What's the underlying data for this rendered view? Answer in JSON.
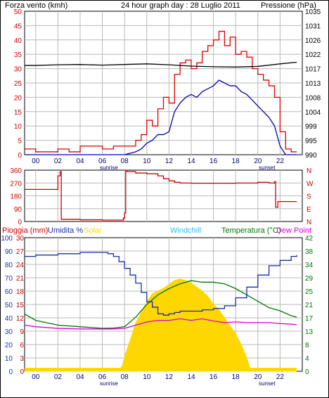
{
  "colors": {
    "wind": "#dd0000",
    "avg_wind": "#0000bb",
    "pressure": "#000000",
    "direction": "#cc0000",
    "humidity": "#1a2ea8",
    "solar": "#ffd700",
    "windchill": "#33bbff",
    "temperature": "#007700",
    "dew_point": "#dd00dd",
    "rain": "#ffd700",
    "grid": "#b8b8b8",
    "axis": "#000000"
  },
  "chart_data": [
    {
      "id": "wind",
      "type": "line",
      "title": "24 hour graph day : 28 Luglio 2011",
      "left_label": "Forza vento (kmh)",
      "right_label": "Pressione (hPa)",
      "x_ticks": [
        "00",
        "02",
        "04",
        "06",
        "08",
        "10",
        "12",
        "14",
        "16",
        "18",
        "20",
        "22"
      ],
      "x_tick_hours": [
        0,
        2,
        4,
        6,
        8,
        10,
        12,
        14,
        16,
        18,
        20,
        22
      ],
      "x_range": [
        -1,
        24
      ],
      "sunrise_label": "sunrise",
      "sunrise_hour": 6.3,
      "sunset_label": "sunset",
      "sunset_hour": 20.7,
      "ylim_left": [
        0,
        50
      ],
      "y_ticks_left": [
        "0",
        "5",
        "10",
        "15",
        "20",
        "25",
        "30",
        "35",
        "40",
        "45",
        "50"
      ],
      "ylim_right": [
        990,
        1035
      ],
      "y_ticks_right": [
        "990",
        "995",
        "999",
        "1004",
        "1008",
        "1013",
        "1017",
        "1022",
        "1026",
        "1031",
        "1035"
      ],
      "series": [
        {
          "key": "gust",
          "axis": "left",
          "x": [
            -1,
            0,
            1,
            2,
            3,
            4,
            5,
            6,
            7,
            8,
            9,
            9.5,
            10,
            10.5,
            11,
            11.5,
            12,
            12.5,
            13,
            13.5,
            14,
            14.5,
            15,
            15.5,
            16,
            16.5,
            17,
            17.5,
            18,
            18.5,
            19,
            19.5,
            20,
            20.5,
            21,
            21.5,
            22,
            22.5,
            23,
            23.5
          ],
          "values": [
            2,
            1,
            1,
            2,
            1,
            3,
            3,
            2,
            3,
            3,
            5,
            7,
            12,
            10,
            16,
            20,
            18,
            28,
            32,
            33,
            30,
            32,
            36,
            38,
            40,
            43,
            38,
            41,
            35,
            36,
            34,
            30,
            28,
            26,
            24,
            20,
            8,
            2,
            1,
            1
          ]
        },
        {
          "key": "avg",
          "axis": "left",
          "x": [
            -1,
            0,
            1,
            2,
            3,
            4,
            5,
            6,
            7,
            8,
            9,
            9.5,
            10,
            10.5,
            11,
            11.5,
            12,
            12.5,
            13,
            13.5,
            14,
            14.5,
            15,
            15.5,
            16,
            16.5,
            17,
            17.5,
            18,
            18.5,
            19,
            19.5,
            20,
            20.5,
            21,
            21.5,
            22,
            22.5,
            23,
            23.5
          ],
          "values": [
            0,
            0,
            0,
            0,
            0,
            0,
            0,
            0,
            0,
            0,
            1,
            2,
            4,
            5,
            7,
            7,
            8,
            15,
            18,
            20,
            21,
            20,
            22,
            23,
            24,
            26,
            25,
            24,
            24,
            22,
            21,
            19,
            17,
            15,
            13,
            10,
            3,
            0,
            0,
            0
          ]
        },
        {
          "key": "pressure",
          "axis": "right",
          "x": [
            -1,
            0,
            2,
            4,
            6,
            8,
            10,
            12,
            14,
            16,
            18,
            20,
            22,
            23.5
          ],
          "values": [
            1018,
            1018,
            1018.2,
            1018.3,
            1018.1,
            1018.3,
            1018.5,
            1018.2,
            1017.8,
            1017.6,
            1017.5,
            1017.7,
            1018.5,
            1019
          ]
        }
      ]
    },
    {
      "id": "direction",
      "type": "line",
      "y_ticks": [
        "360",
        "270",
        "180",
        "90",
        "0"
      ],
      "ylim": [
        0,
        360
      ],
      "right_labels": [
        "N",
        "W",
        "S",
        "E",
        "N"
      ],
      "x_range": [
        -1,
        24
      ],
      "series": [
        {
          "key": "direction",
          "x": [
            -1,
            0.3,
            0.6,
            1,
            1.7,
            2,
            2.2,
            2.3,
            3,
            4,
            6,
            7,
            7.5,
            7.9,
            8,
            8.1,
            8.2,
            9,
            10,
            11,
            11.5,
            12,
            12.5,
            13,
            14,
            16,
            18,
            20,
            21,
            21.5,
            21.6,
            21.8,
            23.5
          ],
          "values": [
            225,
            225,
            225,
            225,
            225,
            320,
            350,
            15,
            15,
            12,
            10,
            10,
            10,
            25,
            60,
            360,
            350,
            340,
            335,
            320,
            300,
            285,
            275,
            270,
            268,
            268,
            270,
            275,
            270,
            280,
            100,
            140,
            140
          ]
        }
      ]
    },
    {
      "id": "multi",
      "type": "line",
      "labels": {
        "rain": "Pioggia (mm)",
        "humidity": "Umidita %",
        "solar": "Solar",
        "windchill": "Windchill",
        "temperature": "Temperatura (°C)",
        "dew_point": "Dew Point"
      },
      "x_range": [
        -1,
        24
      ],
      "ylim_humidity": [
        0,
        100
      ],
      "y_ticks_humidity": [
        "0",
        "10",
        "20",
        "30",
        "40",
        "50",
        "60",
        "70",
        "80",
        "90",
        "100"
      ],
      "ylim_rain": [
        0,
        30
      ],
      "y_ticks_rain": [
        "0",
        "3",
        "6",
        "9",
        "12",
        "15",
        "18",
        "21",
        "24",
        "27",
        "30"
      ],
      "ylim_temp": [
        0,
        42
      ],
      "y_ticks_temp": [
        "0",
        "4",
        "8",
        "13",
        "17",
        "21",
        "25",
        "29",
        "34",
        "38",
        "42"
      ],
      "series": [
        {
          "key": "humidity",
          "x": [
            -1,
            0,
            2,
            4,
            5,
            6,
            6.5,
            7,
            7.5,
            8,
            8.5,
            9,
            9.5,
            10,
            10.5,
            11,
            11.5,
            12,
            12.5,
            13,
            14,
            15,
            16,
            17,
            18,
            19,
            20,
            21,
            22,
            23,
            23.5
          ],
          "values": [
            86,
            87,
            88,
            89,
            89,
            89,
            88,
            86,
            82,
            77,
            72,
            66,
            59,
            52,
            48,
            43,
            42,
            43,
            44,
            45,
            45,
            46,
            47,
            49,
            55,
            63,
            72,
            79,
            83,
            86,
            87
          ]
        },
        {
          "key": "temperature",
          "x": [
            -1,
            0,
            2,
            4,
            6,
            7,
            8,
            9,
            10,
            11,
            12,
            13,
            14,
            15,
            16,
            17,
            18,
            19,
            20,
            21,
            22,
            23,
            23.5
          ],
          "values": [
            18,
            16,
            14.5,
            14,
            13.5,
            13.6,
            14,
            17,
            21,
            24,
            26,
            27.5,
            28.5,
            28,
            28,
            27.5,
            26,
            24,
            22,
            20,
            19,
            17.5,
            17
          ]
        },
        {
          "key": "dew_point",
          "x": [
            -1,
            0,
            2,
            4,
            6,
            7,
            8,
            9,
            10,
            11,
            12,
            13,
            14,
            15,
            16,
            17,
            18,
            19,
            20,
            21,
            22,
            23,
            23.5
          ],
          "values": [
            14.5,
            14,
            13.5,
            13.3,
            13.3,
            13.3,
            13.5,
            14.5,
            15.5,
            16,
            16,
            16.5,
            16,
            16.5,
            15.8,
            15.3,
            15.5,
            15.3,
            15.3,
            15.3,
            15,
            14.8,
            14.6
          ]
        },
        {
          "key": "solar",
          "x": [
            -1,
            0,
            2,
            4,
            6,
            7,
            7.5,
            7.8,
            8,
            8.5,
            9,
            9.5,
            10,
            10.5,
            11,
            11.5,
            12,
            12.5,
            13,
            13.5,
            14,
            14.5,
            15,
            15.5,
            16,
            16.5,
            17,
            17.5,
            18,
            18.5,
            19,
            19.3,
            19.5,
            20,
            22,
            23.5
          ],
          "values": [
            0,
            0,
            0,
            0,
            0,
            0,
            1,
            4,
            11,
            23,
            36,
            44,
            52,
            58,
            60,
            62,
            65,
            68,
            69,
            68,
            66,
            63,
            60,
            56,
            50,
            46,
            40,
            34,
            28,
            20,
            10,
            2,
            0,
            0,
            0,
            0
          ]
        },
        {
          "key": "rain",
          "x": [
            -1,
            23.5
          ],
          "values": [
            0.3,
            0.3
          ]
        }
      ]
    }
  ]
}
